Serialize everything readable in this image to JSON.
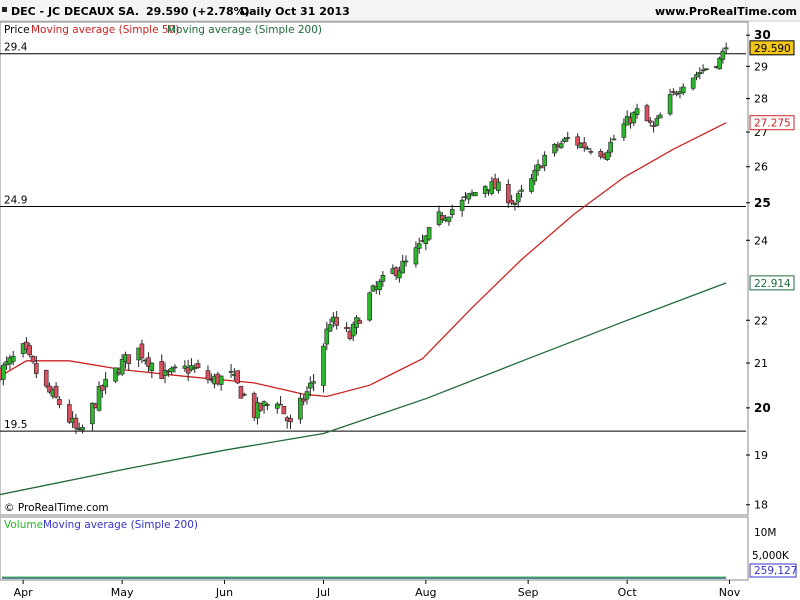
{
  "header": {
    "ticker": "DEC - JC DECAUX SA.",
    "price_change": "29.590 (+2.78%)",
    "period_date": "Daily  Oct 31 2013",
    "site": "www.ProRealTime.com"
  },
  "legend": {
    "price": "Price",
    "ma50": "Moving average (Simple 50)",
    "ma200": "Moving average (Simple 200)"
  },
  "watermark": "© ProRealTime.com",
  "volume_panel": {
    "label": "Volume",
    "ma": "Moving average (Simple 200)",
    "ticks": [
      "10M",
      "5,000K"
    ],
    "ma_value_label": "259,127"
  },
  "colors": {
    "up": "#2db52d",
    "down": "#d85060",
    "ma50": "#cc2222",
    "ma200": "#1e6a3a",
    "last_price_bg": "#f2c618",
    "volume": "#3333cc"
  },
  "chart_data": {
    "type": "candlestick",
    "title": "DEC - JC DECAUX SA.",
    "subtitle": "Daily  Oct 31 2013",
    "ylim": [
      17.8,
      30.4
    ],
    "y_ticks": [
      18,
      19,
      20,
      21,
      22,
      24,
      25,
      26,
      27,
      28,
      29,
      30
    ],
    "x_tick_labels": [
      "Apr",
      "May",
      "Jun",
      "Jul",
      "Aug",
      "Sep",
      "Oct",
      "Nov"
    ],
    "x_range": [
      "2013-03-25",
      "2013-11-06"
    ],
    "last_date": "2013-10-31",
    "horizontal_lines": [
      {
        "value": 29.4,
        "label": "29.4"
      },
      {
        "value": 24.9,
        "label": "24.9"
      },
      {
        "value": 19.5,
        "label": "19.5"
      }
    ],
    "last_values": [
      {
        "name": "Price",
        "value": 29.59,
        "label": "29.590"
      },
      {
        "name": "Moving average (Simple 50)",
        "value": 27.275,
        "label": "27.275"
      },
      {
        "name": "Moving average (Simple 200)",
        "value": 22.914,
        "label": "22.914"
      }
    ],
    "close_anchors": [
      [
        "2013-03-25",
        20.8
      ],
      [
        "2013-04-01",
        21.3
      ],
      [
        "2013-04-08",
        20.4
      ],
      [
        "2013-04-12",
        20.1
      ],
      [
        "2013-04-18",
        19.4
      ],
      [
        "2013-04-24",
        20.3
      ],
      [
        "2013-05-01",
        21.0
      ],
      [
        "2013-05-06",
        21.3
      ],
      [
        "2013-05-14",
        20.7
      ],
      [
        "2013-05-22",
        20.9
      ],
      [
        "2013-05-28",
        20.6
      ],
      [
        "2013-06-03",
        20.7
      ],
      [
        "2013-06-10",
        19.9
      ],
      [
        "2013-06-17",
        20.2
      ],
      [
        "2013-06-21",
        19.6
      ],
      [
        "2013-06-25",
        20.2
      ],
      [
        "2013-06-28",
        20.6
      ],
      [
        "2013-07-03",
        22.0
      ],
      [
        "2013-07-09",
        21.6
      ],
      [
        "2013-07-15",
        22.6
      ],
      [
        "2013-07-22",
        23.2
      ],
      [
        "2013-07-26",
        23.4
      ],
      [
        "2013-07-31",
        23.9
      ],
      [
        "2013-08-05",
        24.6
      ],
      [
        "2013-08-12",
        25.0
      ],
      [
        "2013-08-19",
        25.5
      ],
      [
        "2013-08-23",
        25.4
      ],
      [
        "2013-08-28",
        25.0
      ],
      [
        "2013-09-02",
        25.6
      ],
      [
        "2013-09-06",
        26.3
      ],
      [
        "2013-09-13",
        26.8
      ],
      [
        "2013-09-18",
        26.6
      ],
      [
        "2013-09-24",
        26.4
      ],
      [
        "2013-09-30",
        27.2
      ],
      [
        "2013-10-04",
        27.6
      ],
      [
        "2013-10-09",
        27.1
      ],
      [
        "2013-10-14",
        28.0
      ],
      [
        "2013-10-18",
        28.5
      ],
      [
        "2013-10-24",
        28.9
      ],
      [
        "2013-10-29",
        29.2
      ],
      [
        "2013-10-31",
        29.59
      ]
    ],
    "ma50_points": [
      [
        "2013-03-25",
        20.7
      ],
      [
        "2013-04-02",
        21.05
      ],
      [
        "2013-04-15",
        21.05
      ],
      [
        "2013-05-01",
        20.85
      ],
      [
        "2013-05-20",
        20.7
      ],
      [
        "2013-06-10",
        20.55
      ],
      [
        "2013-06-25",
        20.3
      ],
      [
        "2013-07-02",
        20.25
      ],
      [
        "2013-07-15",
        20.5
      ],
      [
        "2013-07-31",
        21.1
      ],
      [
        "2013-08-15",
        22.3
      ],
      [
        "2013-08-30",
        23.5
      ],
      [
        "2013-09-15",
        24.7
      ],
      [
        "2013-09-30",
        25.7
      ],
      [
        "2013-10-15",
        26.5
      ],
      [
        "2013-10-31",
        27.275
      ]
    ],
    "ma200_points": [
      [
        "2013-03-25",
        18.2
      ],
      [
        "2013-05-01",
        18.7
      ],
      [
        "2013-06-01",
        19.1
      ],
      [
        "2013-07-01",
        19.45
      ],
      [
        "2013-08-01",
        20.2
      ],
      [
        "2013-09-01",
        21.1
      ],
      [
        "2013-10-01",
        22.0
      ],
      [
        "2013-10-31",
        22.914
      ]
    ]
  }
}
